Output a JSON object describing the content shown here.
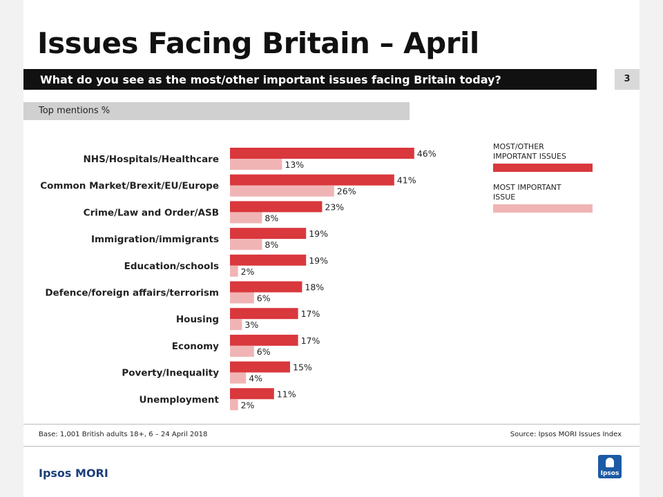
{
  "title": "Issues Facing Britain – April",
  "question": "What do you see as the most/other important issues facing Britain today?",
  "page_number": "3",
  "subtitle": "Top mentions %",
  "legend": [
    {
      "label": "MOST/OTHER\nIMPORTANT ISSUES",
      "color": "#d9383d"
    },
    {
      "label": "MOST IMPORTANT\nISSUE",
      "color": "#f1b4b5"
    }
  ],
  "footer": {
    "base": "Base: 1,001 British adults 18+, 6 – 24 April 2018",
    "source": "Source: Ipsos MORI Issues Index"
  },
  "brand": "Ipsos MORI",
  "logo_text": "Ipsos",
  "chart_data": {
    "type": "bar",
    "orientation": "horizontal",
    "categories": [
      "NHS/Hospitals/Healthcare",
      "Common Market/Brexit/EU/Europe",
      "Crime/Law and Order/ASB",
      "Immigration/immigrants",
      "Education/schools",
      "Defence/foreign affairs/terrorism",
      "Housing",
      "Economy",
      "Poverty/Inequality",
      "Unemployment"
    ],
    "series": [
      {
        "name": "MOST/OTHER IMPORTANT ISSUES",
        "color": "#d9383d",
        "values": [
          46,
          41,
          23,
          19,
          19,
          18,
          17,
          17,
          15,
          11
        ]
      },
      {
        "name": "MOST IMPORTANT ISSUE",
        "color": "#f1b4b5",
        "values": [
          13,
          26,
          8,
          8,
          2,
          6,
          3,
          6,
          4,
          2
        ]
      }
    ],
    "value_suffix": "%",
    "xlim": [
      0,
      100
    ],
    "grid": false,
    "legend_position": "right"
  }
}
